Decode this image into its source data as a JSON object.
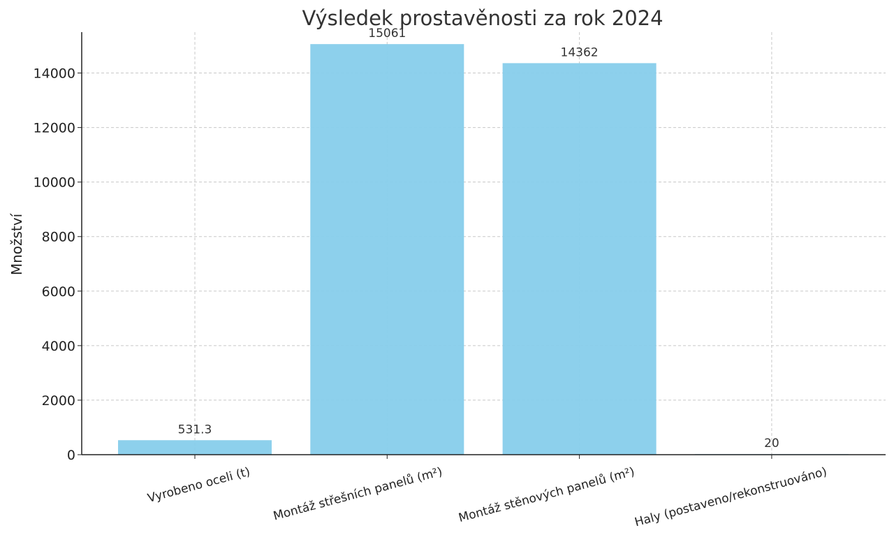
{
  "chart_data": {
    "type": "bar",
    "title": "Výsledek prostavěnosti za rok 2024",
    "xlabel": "",
    "ylabel": "Množství",
    "categories": [
      "Vyrobeno oceli (t)",
      "Montáž střešních panelů (m²)",
      "Montáž stěnových panelů (m²)",
      "Haly (postaveno/rekonstruováno)"
    ],
    "values": [
      531.3,
      15061,
      14362,
      20
    ],
    "data_labels": [
      "531.3",
      "15061",
      "14362",
      "20"
    ],
    "ylim": [
      0,
      15500
    ],
    "yticks": [
      0,
      2000,
      4000,
      6000,
      8000,
      10000,
      12000,
      14000
    ],
    "ytick_labels": [
      "0",
      "2000",
      "4000",
      "6000",
      "8000",
      "10000",
      "12000",
      "14000"
    ],
    "grid": true,
    "legend": "none",
    "bar_color": "#87ceeb"
  }
}
